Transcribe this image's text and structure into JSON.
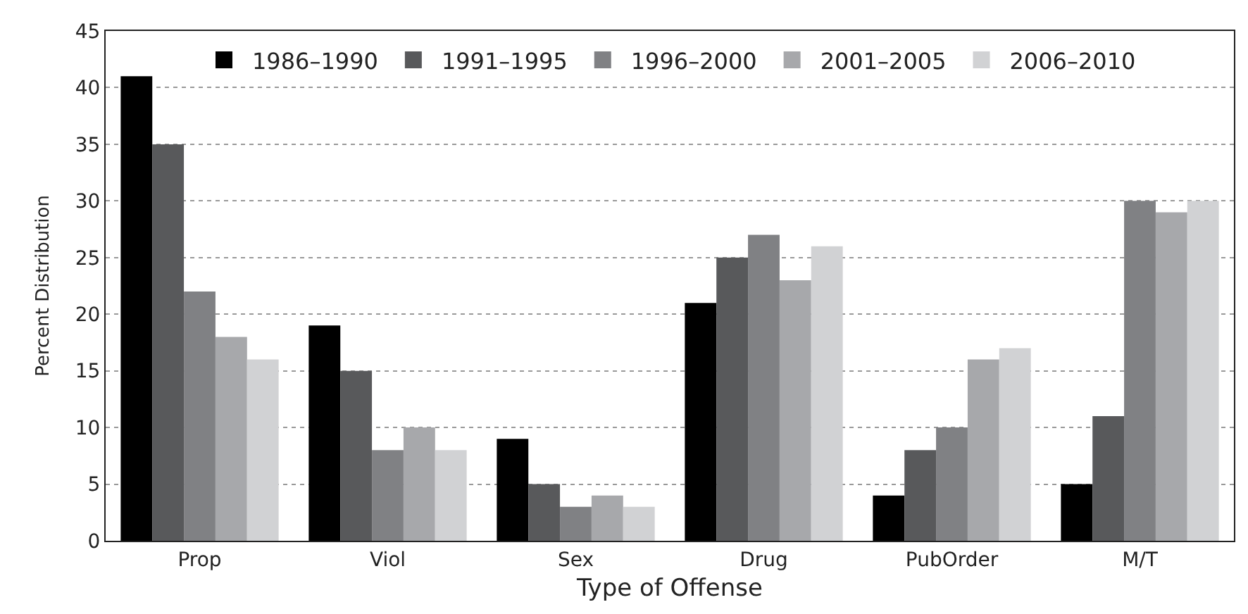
{
  "chart_data": {
    "type": "bar",
    "xlabel": "Type of Offense",
    "ylabel": "Percent Distribution",
    "categories": [
      "Prop",
      "Viol",
      "Sex",
      "Drug",
      "PubOrder",
      "M/T"
    ],
    "series": [
      {
        "name": "1986–1990",
        "color": "#000000",
        "values": [
          41,
          19,
          9,
          21,
          4,
          5
        ]
      },
      {
        "name": "1991–1995",
        "color": "#58595b",
        "values": [
          35,
          15,
          5,
          25,
          8,
          11
        ]
      },
      {
        "name": "1996–2000",
        "color": "#808184",
        "values": [
          22,
          8,
          3,
          27,
          10,
          30
        ]
      },
      {
        "name": "2001–2005",
        "color": "#a7a8ab",
        "values": [
          18,
          10,
          4,
          23,
          16,
          29
        ]
      },
      {
        "name": "2006–2010",
        "color": "#d1d2d4",
        "values": [
          16,
          8,
          3,
          26,
          17,
          30
        ]
      }
    ],
    "ylim": [
      0,
      45
    ],
    "yticks": [
      0,
      5,
      10,
      15,
      20,
      25,
      30,
      35,
      40,
      45
    ],
    "grid": "y",
    "legend": "top"
  }
}
